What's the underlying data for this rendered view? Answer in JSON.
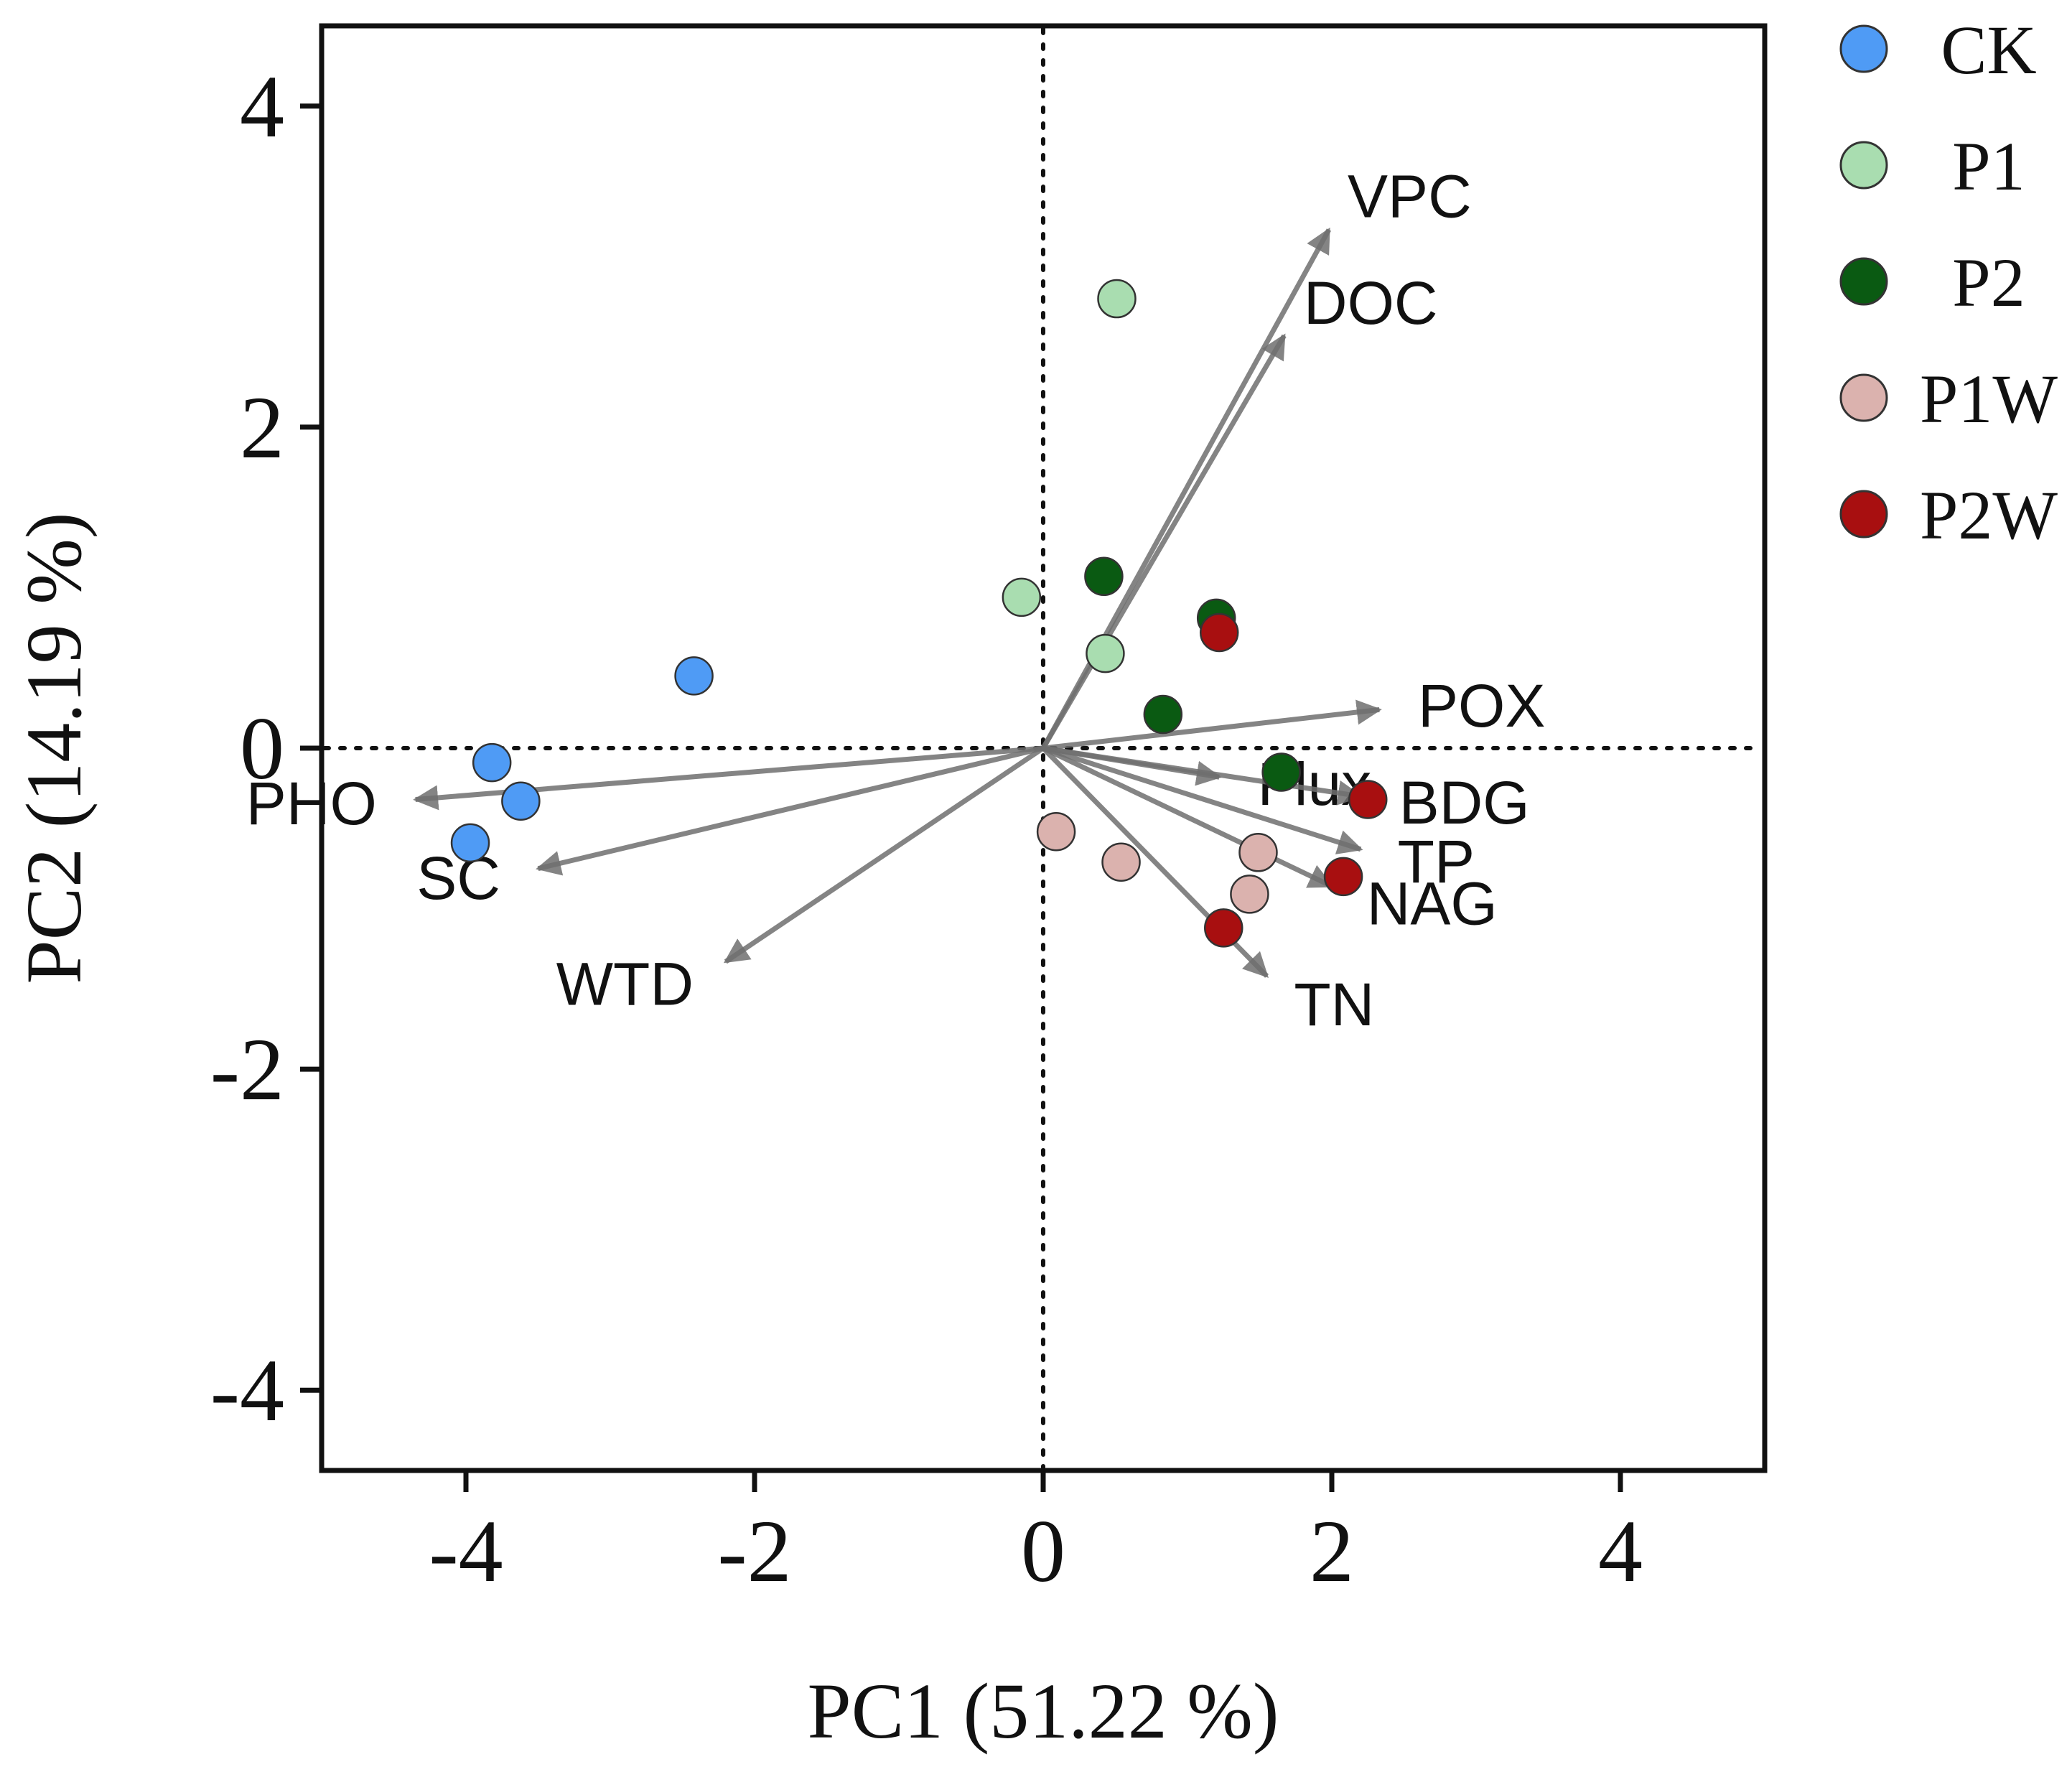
{
  "chart_data": {
    "type": "scatter",
    "subtype": "pca-biplot",
    "title": "",
    "xlabel": "PC1 (51.22 %)",
    "ylabel": "PC2 (14.19 %)",
    "xlim": [
      -5,
      5
    ],
    "ylim": [
      -4.5,
      4.5
    ],
    "xticks": [
      -4,
      -2,
      0,
      2,
      4
    ],
    "yticks": [
      -4,
      -2,
      0,
      2,
      4
    ],
    "xtick_labels": [
      "-4",
      "-2",
      "0",
      "2",
      "4"
    ],
    "ytick_labels": [
      "-4",
      "-2",
      "0",
      "2",
      "4"
    ],
    "reference_lines": {
      "x": 0,
      "y": 0,
      "style": "dotted"
    },
    "legend_position": "right-outside-top",
    "series": [
      {
        "name": "CK",
        "color": "#4f9bf5",
        "points": [
          [
            -2.42,
            0.45
          ],
          [
            -3.82,
            -0.09
          ],
          [
            -3.62,
            -0.33
          ],
          [
            -3.97,
            -0.59
          ]
        ]
      },
      {
        "name": "P1",
        "color": "#a9ddb0",
        "points": [
          [
            0.51,
            2.8
          ],
          [
            -0.15,
            0.94
          ],
          [
            0.43,
            0.59
          ]
        ]
      },
      {
        "name": "P2",
        "color": "#0a5a12",
        "points": [
          [
            0.42,
            1.07
          ],
          [
            1.2,
            0.81
          ],
          [
            0.83,
            0.21
          ],
          [
            1.65,
            -0.15
          ]
        ]
      },
      {
        "name": "P1W",
        "color": "#dbb2ae",
        "points": [
          [
            0.09,
            -0.52
          ],
          [
            0.54,
            -0.71
          ],
          [
            1.49,
            -0.65
          ],
          [
            1.43,
            -0.91
          ]
        ]
      },
      {
        "name": "P2W",
        "color": "#a80f10",
        "points": [
          [
            1.22,
            0.72
          ],
          [
            2.25,
            -0.32
          ],
          [
            2.08,
            -0.8
          ],
          [
            1.25,
            -1.12
          ]
        ]
      }
    ],
    "loadings": {
      "color": "#6f6f6f",
      "vectors": [
        {
          "name": "VPC",
          "x": 1.98,
          "y": 3.23
        },
        {
          "name": "DOC",
          "x": 1.67,
          "y": 2.57
        },
        {
          "name": "POX",
          "x": 2.33,
          "y": 0.24
        },
        {
          "name": "Flux",
          "x": 1.22,
          "y": -0.18
        },
        {
          "name": "BDG",
          "x": 2.2,
          "y": -0.3
        },
        {
          "name": "TP",
          "x": 2.2,
          "y": -0.63
        },
        {
          "name": "NAG",
          "x": 2.0,
          "y": -0.86
        },
        {
          "name": "TN",
          "x": 1.55,
          "y": -1.42
        },
        {
          "name": "PHO",
          "x": -4.35,
          "y": -0.32
        },
        {
          "name": "SC",
          "x": -3.5,
          "y": -0.75
        },
        {
          "name": "WTD",
          "x": -2.2,
          "y": -1.33
        }
      ]
    }
  }
}
